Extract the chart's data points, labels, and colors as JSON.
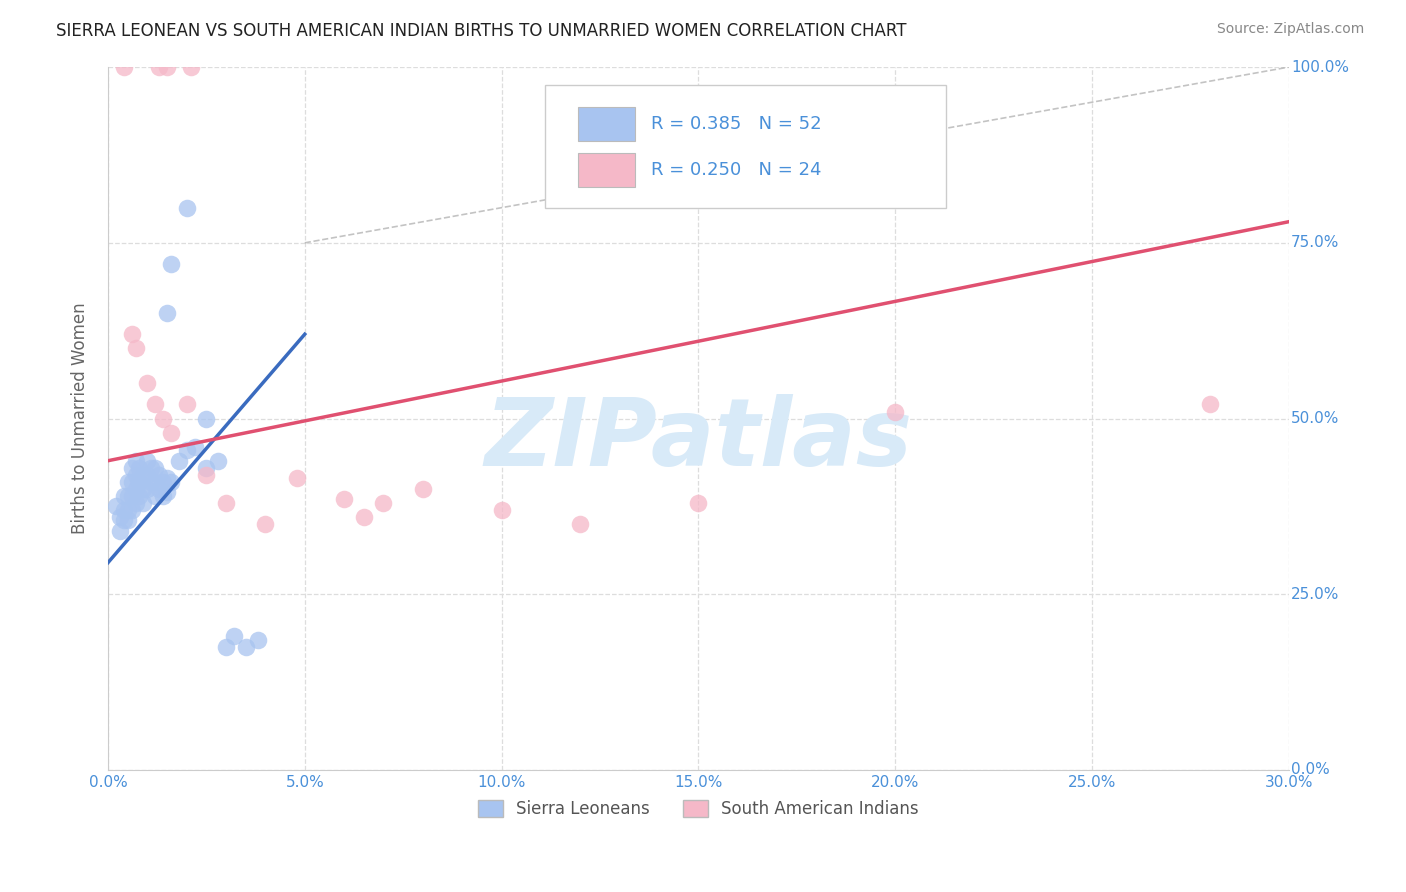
{
  "title": "SIERRA LEONEAN VS SOUTH AMERICAN INDIAN BIRTHS TO UNMARRIED WOMEN CORRELATION CHART",
  "source": "Source: ZipAtlas.com",
  "ylabel": "Births to Unmarried Women",
  "xlim": [
    0.0,
    0.3
  ],
  "ylim": [
    0.0,
    1.0
  ],
  "xticks": [
    0.0,
    0.05,
    0.1,
    0.15,
    0.2,
    0.25,
    0.3
  ],
  "xtick_labels": [
    "0.0%",
    "5.0%",
    "10.0%",
    "15.0%",
    "20.0%",
    "25.0%",
    "30.0%"
  ],
  "yticks": [
    0.0,
    0.25,
    0.5,
    0.75,
    1.0
  ],
  "ytick_labels": [
    "0.0%",
    "25.0%",
    "50.0%",
    "75.0%",
    "100.0%"
  ],
  "legend_labels": [
    "Sierra Leoneans",
    "South American Indians"
  ],
  "R_blue": 0.385,
  "N_blue": 52,
  "R_pink": 0.25,
  "N_pink": 24,
  "blue_color": "#A8C4F0",
  "pink_color": "#F5B8C8",
  "blue_line_color": "#3A6BBF",
  "pink_line_color": "#E05070",
  "title_color": "#222222",
  "tick_color": "#4A90D9",
  "ylabel_color": "#666666",
  "watermark_color": "#D8EAF8",
  "grid_color": "#DDDDDD",
  "blue_line": [
    [
      0.0,
      0.295
    ],
    [
      0.05,
      0.62
    ]
  ],
  "pink_line": [
    [
      0.0,
      0.44
    ],
    [
      0.3,
      0.78
    ]
  ],
  "diag_line": [
    [
      0.05,
      0.75
    ],
    [
      0.3,
      1.0
    ]
  ],
  "blue_scatter": [
    [
      0.002,
      0.375
    ],
    [
      0.003,
      0.36
    ],
    [
      0.003,
      0.34
    ],
    [
      0.004,
      0.39
    ],
    [
      0.004,
      0.37
    ],
    [
      0.004,
      0.355
    ],
    [
      0.005,
      0.41
    ],
    [
      0.005,
      0.39
    ],
    [
      0.005,
      0.37
    ],
    [
      0.005,
      0.355
    ],
    [
      0.006,
      0.43
    ],
    [
      0.006,
      0.41
    ],
    [
      0.006,
      0.39
    ],
    [
      0.006,
      0.37
    ],
    [
      0.007,
      0.44
    ],
    [
      0.007,
      0.42
    ],
    [
      0.007,
      0.4
    ],
    [
      0.007,
      0.38
    ],
    [
      0.008,
      0.43
    ],
    [
      0.008,
      0.41
    ],
    [
      0.008,
      0.39
    ],
    [
      0.009,
      0.42
    ],
    [
      0.009,
      0.4
    ],
    [
      0.009,
      0.38
    ],
    [
      0.01,
      0.44
    ],
    [
      0.01,
      0.42
    ],
    [
      0.01,
      0.4
    ],
    [
      0.011,
      0.43
    ],
    [
      0.011,
      0.41
    ],
    [
      0.012,
      0.43
    ],
    [
      0.012,
      0.41
    ],
    [
      0.012,
      0.39
    ],
    [
      0.013,
      0.42
    ],
    [
      0.013,
      0.4
    ],
    [
      0.014,
      0.41
    ],
    [
      0.014,
      0.39
    ],
    [
      0.015,
      0.415
    ],
    [
      0.015,
      0.395
    ],
    [
      0.016,
      0.41
    ],
    [
      0.018,
      0.44
    ],
    [
      0.02,
      0.455
    ],
    [
      0.022,
      0.46
    ],
    [
      0.025,
      0.43
    ],
    [
      0.028,
      0.44
    ],
    [
      0.03,
      0.175
    ],
    [
      0.032,
      0.19
    ],
    [
      0.035,
      0.175
    ],
    [
      0.038,
      0.185
    ],
    [
      0.015,
      0.65
    ],
    [
      0.016,
      0.72
    ],
    [
      0.02,
      0.8
    ],
    [
      0.025,
      0.5
    ]
  ],
  "pink_scatter": [
    [
      0.004,
      1.0
    ],
    [
      0.013,
      1.0
    ],
    [
      0.015,
      1.0
    ],
    [
      0.021,
      1.0
    ],
    [
      0.006,
      0.62
    ],
    [
      0.007,
      0.6
    ],
    [
      0.01,
      0.55
    ],
    [
      0.012,
      0.52
    ],
    [
      0.014,
      0.5
    ],
    [
      0.016,
      0.48
    ],
    [
      0.02,
      0.52
    ],
    [
      0.025,
      0.42
    ],
    [
      0.03,
      0.38
    ],
    [
      0.04,
      0.35
    ],
    [
      0.048,
      0.415
    ],
    [
      0.06,
      0.385
    ],
    [
      0.065,
      0.36
    ],
    [
      0.07,
      0.38
    ],
    [
      0.08,
      0.4
    ],
    [
      0.1,
      0.37
    ],
    [
      0.12,
      0.35
    ],
    [
      0.15,
      0.38
    ],
    [
      0.2,
      0.51
    ],
    [
      0.28,
      0.52
    ]
  ]
}
